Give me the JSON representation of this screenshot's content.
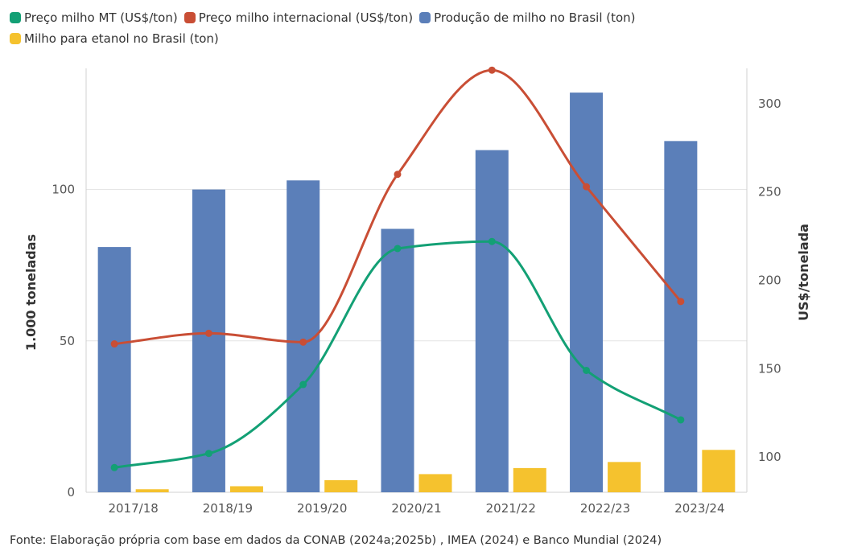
{
  "chart_data": {
    "type": "bar+line",
    "categories": [
      "2017/18",
      "2018/19",
      "2019/20",
      "2020/21",
      "2021/22",
      "2022/23",
      "2023/24"
    ],
    "series": [
      {
        "name": "Preço milho MT (US$/ton)",
        "type": "line",
        "axis": "right",
        "color": "#13a075",
        "values": [
          94,
          102,
          141,
          218,
          222,
          149,
          121
        ]
      },
      {
        "name": "Preço milho internacional (US$/ton)",
        "type": "line",
        "axis": "right",
        "color": "#c94e35",
        "values": [
          164,
          170,
          165,
          260,
          319,
          253,
          188
        ]
      },
      {
        "name": "Produção de milho no Brasil (ton)",
        "type": "bar",
        "axis": "left",
        "color": "#5b7fb9",
        "values": [
          81,
          100,
          103,
          87,
          113,
          132,
          116
        ]
      },
      {
        "name": "Milho para etanol no Brasil (ton)",
        "type": "bar",
        "axis": "left",
        "color": "#f5c22e",
        "values": [
          1,
          2,
          4,
          6,
          8,
          10,
          14
        ]
      }
    ],
    "left_axis": {
      "label": "1.000 toneladas",
      "ticks": [
        0,
        50,
        100
      ],
      "range": [
        0,
        140
      ]
    },
    "right_axis": {
      "label": "US$/tonelada",
      "ticks": [
        100,
        150,
        200,
        250,
        300
      ],
      "range": [
        80,
        320
      ]
    },
    "grid": true,
    "legend_position": "top-left"
  },
  "source_note": "Fonte: Elaboração própria com base em dados da CONAB (2024a;2025b) , IMEA (2024) e Banco Mundial (2024)"
}
